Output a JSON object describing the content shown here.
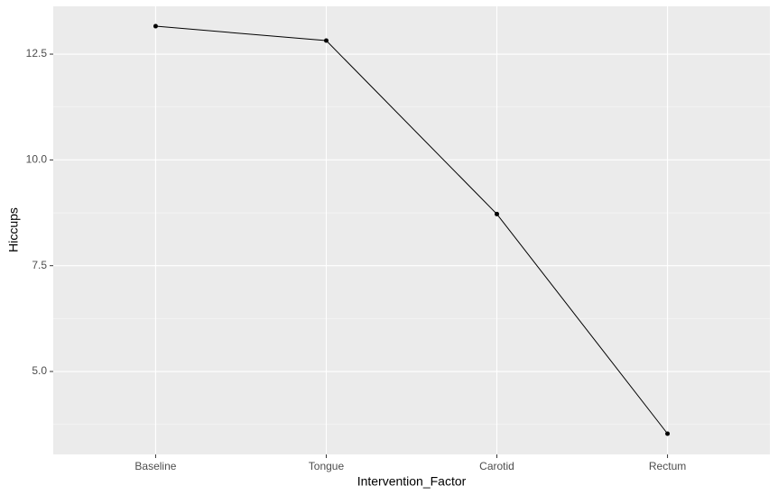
{
  "chart_data": {
    "type": "line",
    "x_label": "Intervention_Factor",
    "y_label": "Hiccups",
    "categories": [
      "Baseline",
      "Tongue",
      "Carotid",
      "Rectum"
    ],
    "values": [
      13.16,
      12.82,
      8.72,
      3.53
    ],
    "color": "#000000",
    "ylim": [
      3.04,
      13.63
    ],
    "yticks": [
      12.5,
      {
        "value": 10,
        "label": "10.0"
      },
      7.5,
      {
        "value": 5,
        "label": "5.0"
      }
    ],
    "grid": true
  }
}
